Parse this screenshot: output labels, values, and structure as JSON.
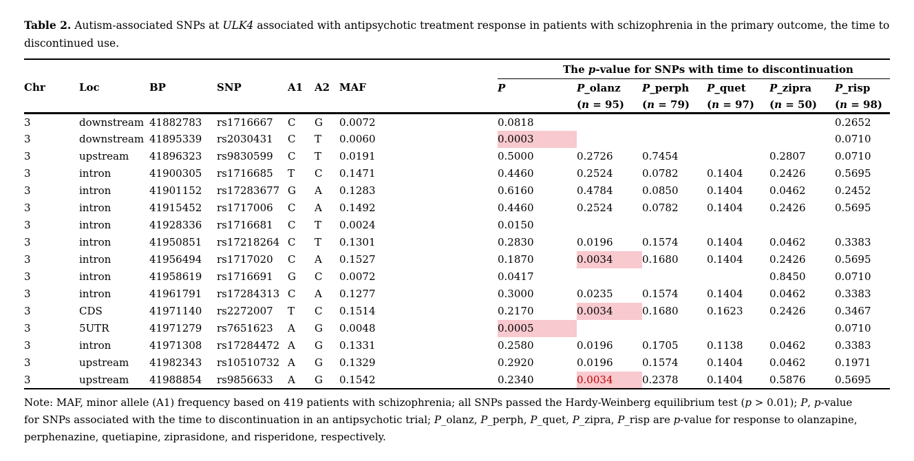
{
  "title_lines": [
    [
      {
        "t": "Table 2.",
        "b": 1
      },
      {
        "t": " Autism-associated SNPs at "
      },
      {
        "t": "ULK4",
        "i": 1
      },
      {
        "t": " associated with antipsychotic treatment response in patients with schizophrenia in the primary outcome, the time to"
      }
    ],
    [
      {
        "t": "discontinued use."
      }
    ]
  ],
  "table": {
    "spanner": [
      {
        "t": "The ",
        "b": 1
      },
      {
        "t": "p",
        "b": 1,
        "i": 1
      },
      {
        "t": "-value for SNPs with time to discontinuation",
        "b": 1
      }
    ],
    "columns": [
      {
        "id": "chr",
        "label": [
          {
            "t": "Chr",
            "b": 1
          }
        ]
      },
      {
        "id": "loc",
        "label": [
          {
            "t": "Loc",
            "b": 1
          }
        ]
      },
      {
        "id": "bp",
        "label": [
          {
            "t": "BP",
            "b": 1
          }
        ]
      },
      {
        "id": "snp",
        "label": [
          {
            "t": "SNP",
            "b": 1
          }
        ]
      },
      {
        "id": "a1",
        "label": [
          {
            "t": "A1",
            "b": 1
          }
        ]
      },
      {
        "id": "a2",
        "label": [
          {
            "t": "A2",
            "b": 1
          }
        ]
      },
      {
        "id": "maf",
        "label": [
          {
            "t": "MAF",
            "b": 1
          }
        ]
      },
      {
        "id": "p",
        "label": [
          {
            "t": "P",
            "b": 1,
            "i": 1
          }
        ]
      },
      {
        "id": "p_olanz",
        "label": [
          {
            "t": "P",
            "b": 1,
            "i": 1
          },
          {
            "t": "_olanz",
            "b": 1
          }
        ],
        "sub": [
          {
            "t": "(",
            "b": 1
          },
          {
            "t": "n",
            "b": 1,
            "i": 1
          },
          {
            "t": " = 95)",
            "b": 1
          }
        ]
      },
      {
        "id": "p_perph",
        "label": [
          {
            "t": "P",
            "b": 1,
            "i": 1
          },
          {
            "t": "_perph",
            "b": 1
          }
        ],
        "sub": [
          {
            "t": "(",
            "b": 1
          },
          {
            "t": "n",
            "b": 1,
            "i": 1
          },
          {
            "t": " = 79)",
            "b": 1
          }
        ]
      },
      {
        "id": "p_quet",
        "label": [
          {
            "t": "P",
            "b": 1,
            "i": 1
          },
          {
            "t": "_quet",
            "b": 1
          }
        ],
        "sub": [
          {
            "t": "(",
            "b": 1
          },
          {
            "t": "n",
            "b": 1,
            "i": 1
          },
          {
            "t": " = 97)",
            "b": 1
          }
        ]
      },
      {
        "id": "p_zipra",
        "label": [
          {
            "t": "P",
            "b": 1,
            "i": 1
          },
          {
            "t": "_zipra",
            "b": 1
          }
        ],
        "sub": [
          {
            "t": "(",
            "b": 1
          },
          {
            "t": "n",
            "b": 1,
            "i": 1
          },
          {
            "t": " = 50)",
            "b": 1
          }
        ]
      },
      {
        "id": "p_risp",
        "label": [
          {
            "t": "P",
            "b": 1,
            "i": 1
          },
          {
            "t": "_risp",
            "b": 1
          }
        ],
        "sub": [
          {
            "t": "(",
            "b": 1
          },
          {
            "t": "n",
            "b": 1,
            "i": 1
          },
          {
            "t": " = 98)",
            "b": 1
          }
        ]
      }
    ],
    "highlight_color": "#f8c9cf",
    "red_text_color": "#c00000",
    "rows": [
      {
        "cells": [
          "3",
          "downstream",
          "41882783",
          "rs1716667",
          "C",
          "G",
          "0.0072",
          "0.0818",
          "",
          "",
          "",
          "",
          "0.2652"
        ]
      },
      {
        "cells": [
          "3",
          "downstream",
          "41895339",
          "rs2030431",
          "C",
          "T",
          "0.0060",
          "0.0003",
          "",
          "",
          "",
          "",
          "0.0710"
        ],
        "highlight": [
          7
        ]
      },
      {
        "cells": [
          "3",
          "upstream",
          "41896323",
          "rs9830599",
          "C",
          "T",
          "0.0191",
          "0.5000",
          "0.2726",
          "0.7454",
          "",
          "0.2807",
          "0.0710"
        ]
      },
      {
        "cells": [
          "3",
          "intron",
          "41900305",
          "rs1716685",
          "T",
          "C",
          "0.1471",
          "0.4460",
          "0.2524",
          "0.0782",
          "0.1404",
          "0.2426",
          "0.5695"
        ]
      },
      {
        "cells": [
          "3",
          "intron",
          "41901152",
          "rs17283677",
          "G",
          "A",
          "0.1283",
          "0.6160",
          "0.4784",
          "0.0850",
          "0.1404",
          "0.0462",
          "0.2452"
        ]
      },
      {
        "cells": [
          "3",
          "intron",
          "41915452",
          "rs1717006",
          "C",
          "A",
          "0.1492",
          "0.4460",
          "0.2524",
          "0.0782",
          "0.1404",
          "0.2426",
          "0.5695"
        ]
      },
      {
        "cells": [
          "3",
          "intron",
          "41928336",
          "rs1716681",
          "C",
          "T",
          "0.0024",
          "0.0150",
          "",
          "",
          "",
          "",
          ""
        ]
      },
      {
        "cells": [
          "3",
          "intron",
          "41950851",
          "rs17218264",
          "C",
          "T",
          "0.1301",
          "0.2830",
          "0.0196",
          "0.1574",
          "0.1404",
          "0.0462",
          "0.3383"
        ]
      },
      {
        "cells": [
          "3",
          "intron",
          "41956494",
          "rs1717020",
          "C",
          "A",
          "0.1527",
          "0.1870",
          "0.0034",
          "0.1680",
          "0.1404",
          "0.2426",
          "0.5695"
        ],
        "highlight": [
          8
        ]
      },
      {
        "cells": [
          "3",
          "intron",
          "41958619",
          "rs1716691",
          "G",
          "C",
          "0.0072",
          "0.0417",
          "",
          "",
          "",
          "0.8450",
          "0.0710"
        ]
      },
      {
        "cells": [
          "3",
          "intron",
          "41961791",
          "rs17284313",
          "C",
          "A",
          "0.1277",
          "0.3000",
          "0.0235",
          "0.1574",
          "0.1404",
          "0.0462",
          "0.3383"
        ]
      },
      {
        "cells": [
          "3",
          "CDS",
          "41971140",
          "rs2272007",
          "T",
          "C",
          "0.1514",
          "0.2170",
          "0.0034",
          "0.1680",
          "0.1623",
          "0.2426",
          "0.3467"
        ],
        "highlight": [
          8
        ]
      },
      {
        "cells": [
          "3",
          "5UTR",
          "41971279",
          "rs7651623",
          "A",
          "G",
          "0.0048",
          "0.0005",
          "",
          "",
          "",
          "",
          "0.0710"
        ],
        "highlight": [
          7
        ]
      },
      {
        "cells": [
          "3",
          "intron",
          "41971308",
          "rs17284472",
          "A",
          "G",
          "0.1331",
          "0.2580",
          "0.0196",
          "0.1705",
          "0.1138",
          "0.0462",
          "0.3383"
        ]
      },
      {
        "cells": [
          "3",
          "upstream",
          "41982343",
          "rs10510732",
          "A",
          "G",
          "0.1329",
          "0.2920",
          "0.0196",
          "0.1574",
          "0.1404",
          "0.0462",
          "0.1971"
        ]
      },
      {
        "cells": [
          "3",
          "upstream",
          "41988854",
          "rs9856633",
          "A",
          "G",
          "0.1542",
          "0.2340",
          "0.0034",
          "0.2378",
          "0.1404",
          "0.5876",
          "0.5695"
        ],
        "highlight": [
          8
        ],
        "red": [
          8
        ]
      }
    ]
  },
  "note_lines": [
    [
      {
        "t": "Note: MAF, minor allele (A1) frequency based on 419 patients with schizophrenia; all SNPs passed the Hardy-Weinberg equilibrium test ("
      },
      {
        "t": "p",
        "i": 1
      },
      {
        "t": " > 0.01); "
      },
      {
        "t": "P",
        "i": 1
      },
      {
        "t": ", "
      },
      {
        "t": "p",
        "i": 1
      },
      {
        "t": "-value"
      }
    ],
    [
      {
        "t": "for SNPs associated with the time to discontinuation in an antipsychotic trial; "
      },
      {
        "t": "P",
        "i": 1
      },
      {
        "t": "_olanz, "
      },
      {
        "t": "P",
        "i": 1
      },
      {
        "t": "_perph, "
      },
      {
        "t": "P",
        "i": 1
      },
      {
        "t": "_quet, "
      },
      {
        "t": "P",
        "i": 1
      },
      {
        "t": "_zipra, "
      },
      {
        "t": "P",
        "i": 1
      },
      {
        "t": "_risp are "
      },
      {
        "t": "p",
        "i": 1
      },
      {
        "t": "-value for response to olanzapine,"
      }
    ],
    [
      {
        "t": "perphenazine, quetiapine, ziprasidone, and risperidone, respectively."
      }
    ]
  ]
}
